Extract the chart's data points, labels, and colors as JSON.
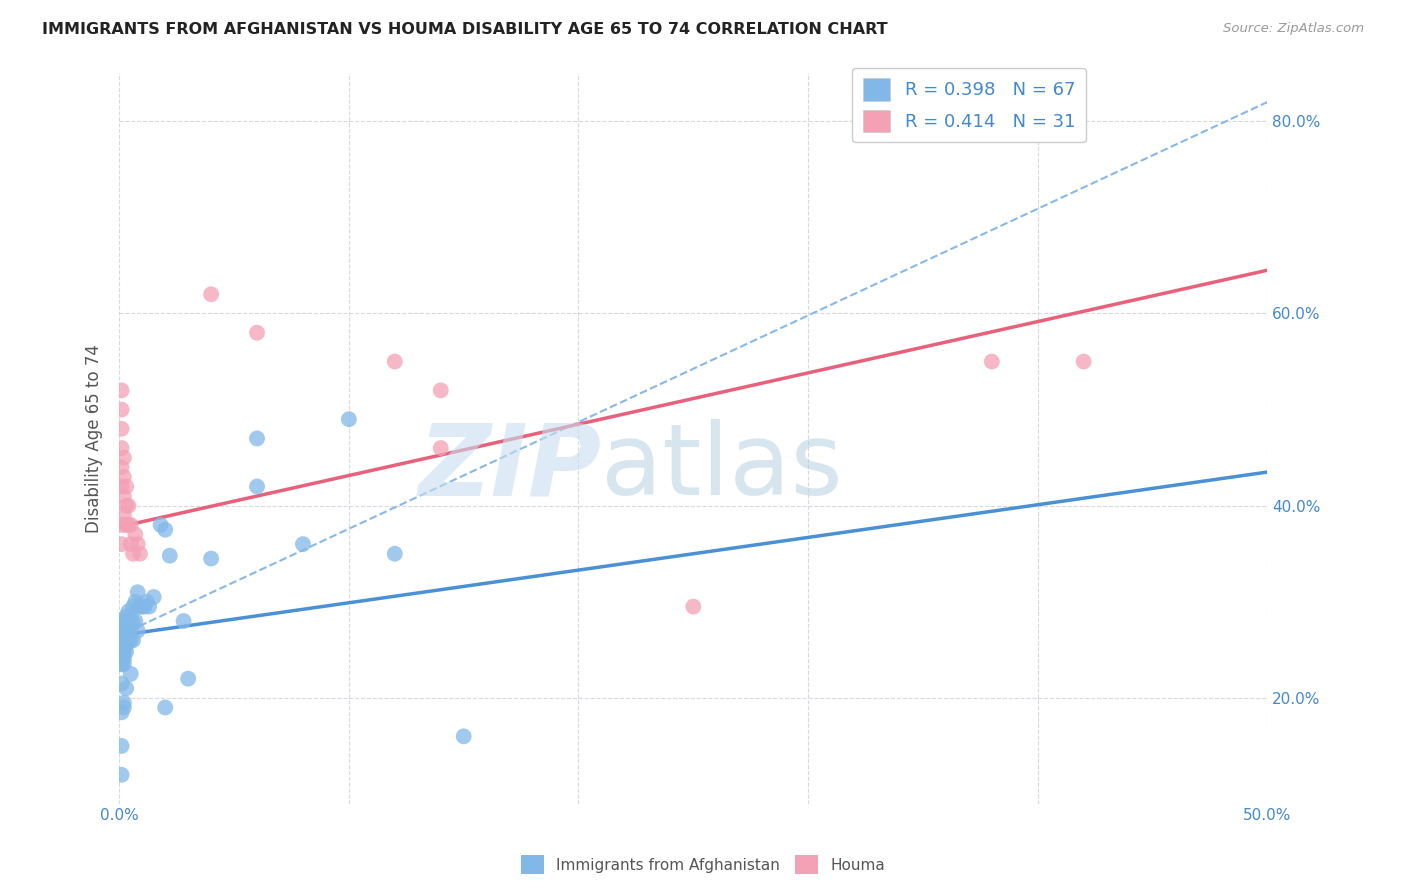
{
  "title": "IMMIGRANTS FROM AFGHANISTAN VS HOUMA DISABILITY AGE 65 TO 74 CORRELATION CHART",
  "source": "Source: ZipAtlas.com",
  "ylabel": "Disability Age 65 to 74",
  "xlim": [
    0.0,
    0.5
  ],
  "ylim": [
    0.09,
    0.85
  ],
  "xtick_positions": [
    0.0,
    0.1,
    0.2,
    0.3,
    0.4,
    0.5
  ],
  "xtick_labels": [
    "0.0%",
    "",
    "",
    "",
    "",
    "50.0%"
  ],
  "ytick_positions": [
    0.2,
    0.4,
    0.6,
    0.8
  ],
  "ytick_labels": [
    "20.0%",
    "40.0%",
    "60.0%",
    "80.0%"
  ],
  "afghanistan_color": "#82b8e8",
  "houma_color": "#f4a0b5",
  "afghanistan_line_color": "#4a90d4",
  "houma_line_color": "#e8607a",
  "dashed_line_color": "#88b8e8",
  "background_color": "#ffffff",
  "grid_color": "#d8d8e0",
  "R_afghanistan": 0.398,
  "N_afghanistan": 67,
  "R_houma": 0.414,
  "N_houma": 31,
  "legend_labels": [
    "Immigrants from Afghanistan",
    "Houma"
  ],
  "afg_line_x0": 0.0,
  "afg_line_y0": 0.265,
  "afg_line_x1": 0.5,
  "afg_line_y1": 0.435,
  "houma_line_x0": 0.0,
  "houma_line_y0": 0.378,
  "houma_line_x1": 0.5,
  "houma_line_y1": 0.645,
  "dashed_line_x0": 0.0,
  "dashed_line_y0": 0.265,
  "dashed_line_x1": 0.5,
  "dashed_line_y1": 0.82,
  "afg_points_x": [
    0.001,
    0.001,
    0.001,
    0.001,
    0.001,
    0.001,
    0.001,
    0.001,
    0.001,
    0.001,
    0.002,
    0.002,
    0.002,
    0.002,
    0.002,
    0.002,
    0.002,
    0.002,
    0.002,
    0.003,
    0.003,
    0.003,
    0.003,
    0.003,
    0.003,
    0.004,
    0.004,
    0.004,
    0.004,
    0.005,
    0.005,
    0.005,
    0.006,
    0.006,
    0.006,
    0.007,
    0.007,
    0.008,
    0.008,
    0.009,
    0.01,
    0.011,
    0.012,
    0.013,
    0.015,
    0.018,
    0.02,
    0.022,
    0.028,
    0.04,
    0.06,
    0.08,
    0.1,
    0.12,
    0.15,
    0.06,
    0.03,
    0.02,
    0.005,
    0.003,
    0.002,
    0.002,
    0.001,
    0.001,
    0.001,
    0.001,
    0.001
  ],
  "afg_points_y": [
    0.275,
    0.28,
    0.27,
    0.265,
    0.26,
    0.255,
    0.25,
    0.245,
    0.24,
    0.235,
    0.28,
    0.275,
    0.268,
    0.26,
    0.255,
    0.25,
    0.245,
    0.24,
    0.235,
    0.285,
    0.275,
    0.268,
    0.26,
    0.255,
    0.248,
    0.29,
    0.278,
    0.268,
    0.258,
    0.285,
    0.272,
    0.26,
    0.295,
    0.278,
    0.26,
    0.3,
    0.28,
    0.31,
    0.27,
    0.295,
    0.295,
    0.295,
    0.3,
    0.295,
    0.305,
    0.38,
    0.375,
    0.348,
    0.28,
    0.345,
    0.47,
    0.36,
    0.49,
    0.35,
    0.16,
    0.42,
    0.22,
    0.19,
    0.225,
    0.21,
    0.195,
    0.19,
    0.235,
    0.215,
    0.185,
    0.15,
    0.12
  ],
  "houma_points_x": [
    0.001,
    0.001,
    0.001,
    0.001,
    0.001,
    0.001,
    0.001,
    0.001,
    0.002,
    0.002,
    0.002,
    0.002,
    0.003,
    0.003,
    0.003,
    0.004,
    0.004,
    0.005,
    0.005,
    0.006,
    0.007,
    0.008,
    0.009,
    0.25,
    0.04,
    0.12,
    0.14,
    0.06,
    0.14,
    0.38,
    0.42
  ],
  "houma_points_y": [
    0.38,
    0.36,
    0.42,
    0.44,
    0.46,
    0.48,
    0.5,
    0.52,
    0.39,
    0.41,
    0.43,
    0.45,
    0.38,
    0.4,
    0.42,
    0.38,
    0.4,
    0.36,
    0.38,
    0.35,
    0.37,
    0.36,
    0.35,
    0.295,
    0.62,
    0.55,
    0.46,
    0.58,
    0.52,
    0.55,
    0.55
  ]
}
